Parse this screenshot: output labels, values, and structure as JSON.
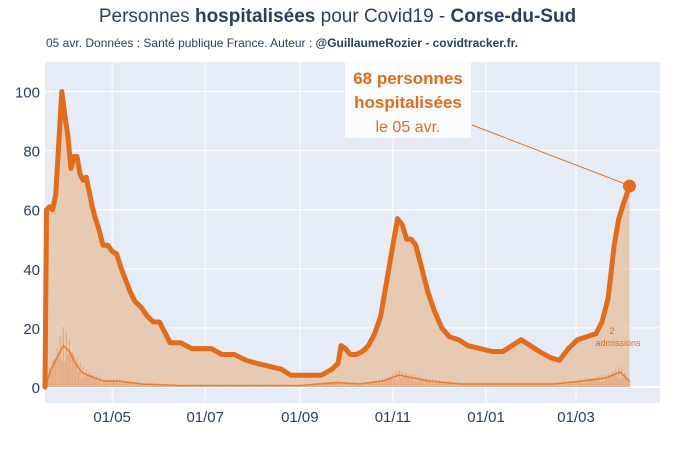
{
  "title": {
    "part1": "Personnes ",
    "part2": "hospitalisées",
    "part3": " pour Covid19 - ",
    "part4": "Corse-du-Sud"
  },
  "subtitle": {
    "text": "05 avr. Données : Santé publique France. Auteur : ",
    "bold": "@GuillaumeRozier - covidtracker.fr."
  },
  "annotation": {
    "line1": "68 personnes",
    "line2": "hospitalisées",
    "line3": "le 05 avr."
  },
  "admissions_label": {
    "value": "2",
    "label": "admissions"
  },
  "colors": {
    "accent": "#e06c1c",
    "fill": "#e8c4a8",
    "plot_bg": "#e5ecf6",
    "text": "#2a3f5f"
  },
  "chart_data": {
    "type": "area",
    "x_ticks": [
      "01/05",
      "01/07",
      "01/09",
      "01/11",
      "01/01",
      "01/03"
    ],
    "y_ticks": [
      0,
      20,
      40,
      60,
      80,
      100
    ],
    "ylim": [
      0,
      110
    ],
    "xlim": [
      "2020-03-18",
      "2021-04-25"
    ],
    "grid": true,
    "series": [
      {
        "points": [
          [
            "2020-03-18",
            0
          ],
          [
            "2020-03-19",
            60
          ],
          [
            "2020-03-21",
            61
          ],
          [
            "2020-03-23",
            60
          ],
          [
            "2020-03-25",
            65
          ],
          [
            "2020-03-27",
            82
          ],
          [
            "2020-03-29",
            100
          ],
          [
            "2020-03-31",
            92
          ],
          [
            "2020-04-02",
            85
          ],
          [
            "2020-04-04",
            74
          ],
          [
            "2020-04-06",
            78
          ],
          [
            "2020-04-08",
            78
          ],
          [
            "2020-04-10",
            72
          ],
          [
            "2020-04-12",
            70
          ],
          [
            "2020-04-14",
            71
          ],
          [
            "2020-04-16",
            66
          ],
          [
            "2020-04-18",
            61
          ],
          [
            "2020-04-20",
            57
          ],
          [
            "2020-04-22",
            54
          ],
          [
            "2020-04-25",
            48
          ],
          [
            "2020-04-28",
            48
          ],
          [
            "2020-05-01",
            46
          ],
          [
            "2020-05-04",
            45
          ],
          [
            "2020-05-07",
            40
          ],
          [
            "2020-05-10",
            36
          ],
          [
            "2020-05-13",
            32
          ],
          [
            "2020-05-16",
            29
          ],
          [
            "2020-05-20",
            27
          ],
          [
            "2020-05-24",
            24
          ],
          [
            "2020-05-28",
            22
          ],
          [
            "2020-06-01",
            22
          ],
          [
            "2020-06-04",
            19
          ],
          [
            "2020-06-08",
            15
          ],
          [
            "2020-06-15",
            15
          ],
          [
            "2020-06-22",
            13
          ],
          [
            "2020-07-05",
            13
          ],
          [
            "2020-07-12",
            11
          ],
          [
            "2020-07-20",
            11
          ],
          [
            "2020-07-28",
            9
          ],
          [
            "2020-08-04",
            8
          ],
          [
            "2020-08-12",
            7
          ],
          [
            "2020-08-20",
            6
          ],
          [
            "2020-08-26",
            4
          ],
          [
            "2020-09-05",
            4
          ],
          [
            "2020-09-15",
            4
          ],
          [
            "2020-09-22",
            6
          ],
          [
            "2020-09-26",
            8
          ],
          [
            "2020-09-28",
            14
          ],
          [
            "2020-10-01",
            13
          ],
          [
            "2020-10-04",
            11
          ],
          [
            "2020-10-08",
            11
          ],
          [
            "2020-10-12",
            12
          ],
          [
            "2020-10-16",
            14
          ],
          [
            "2020-10-20",
            18
          ],
          [
            "2020-10-24",
            24
          ],
          [
            "2020-10-28",
            36
          ],
          [
            "2020-11-01",
            48
          ],
          [
            "2020-11-04",
            57
          ],
          [
            "2020-11-07",
            55
          ],
          [
            "2020-11-10",
            50
          ],
          [
            "2020-11-13",
            50
          ],
          [
            "2020-11-16",
            48
          ],
          [
            "2020-11-20",
            40
          ],
          [
            "2020-11-24",
            32
          ],
          [
            "2020-11-28",
            26
          ],
          [
            "2020-12-03",
            20
          ],
          [
            "2020-12-08",
            17
          ],
          [
            "2020-12-14",
            16
          ],
          [
            "2020-12-20",
            14
          ],
          [
            "2020-12-28",
            13
          ],
          [
            "2021-01-05",
            12
          ],
          [
            "2021-01-12",
            12
          ],
          [
            "2021-01-18",
            14
          ],
          [
            "2021-01-24",
            16
          ],
          [
            "2021-01-30",
            14
          ],
          [
            "2021-02-05",
            12
          ],
          [
            "2021-02-12",
            10
          ],
          [
            "2021-02-18",
            9
          ],
          [
            "2021-02-24",
            13
          ],
          [
            "2021-03-02",
            16
          ],
          [
            "2021-03-08",
            17
          ],
          [
            "2021-03-14",
            18
          ],
          [
            "2021-03-18",
            22
          ],
          [
            "2021-03-22",
            30
          ],
          [
            "2021-03-26",
            48
          ],
          [
            "2021-03-29",
            57
          ],
          [
            "2021-04-01",
            62
          ],
          [
            "2021-04-05",
            68
          ]
        ]
      },
      {
        "points": [
          [
            "2020-03-18",
            0
          ],
          [
            "2020-03-22",
            6
          ],
          [
            "2020-03-26",
            10
          ],
          [
            "2020-03-30",
            14
          ],
          [
            "2020-04-03",
            12
          ],
          [
            "2020-04-07",
            8
          ],
          [
            "2020-04-11",
            5
          ],
          [
            "2020-04-15",
            4
          ],
          [
            "2020-04-20",
            3
          ],
          [
            "2020-04-25",
            2
          ],
          [
            "2020-05-05",
            2
          ],
          [
            "2020-05-20",
            1
          ],
          [
            "2020-06-15",
            0.5
          ],
          [
            "2020-09-01",
            0.5
          ],
          [
            "2020-09-25",
            1.5
          ],
          [
            "2020-10-10",
            1
          ],
          [
            "2020-10-25",
            2
          ],
          [
            "2020-11-05",
            4
          ],
          [
            "2020-11-15",
            3
          ],
          [
            "2020-11-25",
            2
          ],
          [
            "2020-12-15",
            1
          ],
          [
            "2021-01-15",
            1
          ],
          [
            "2021-02-15",
            1
          ],
          [
            "2021-03-05",
            2
          ],
          [
            "2021-03-20",
            3
          ],
          [
            "2021-03-30",
            5
          ],
          [
            "2021-04-05",
            2
          ]
        ]
      }
    ]
  }
}
